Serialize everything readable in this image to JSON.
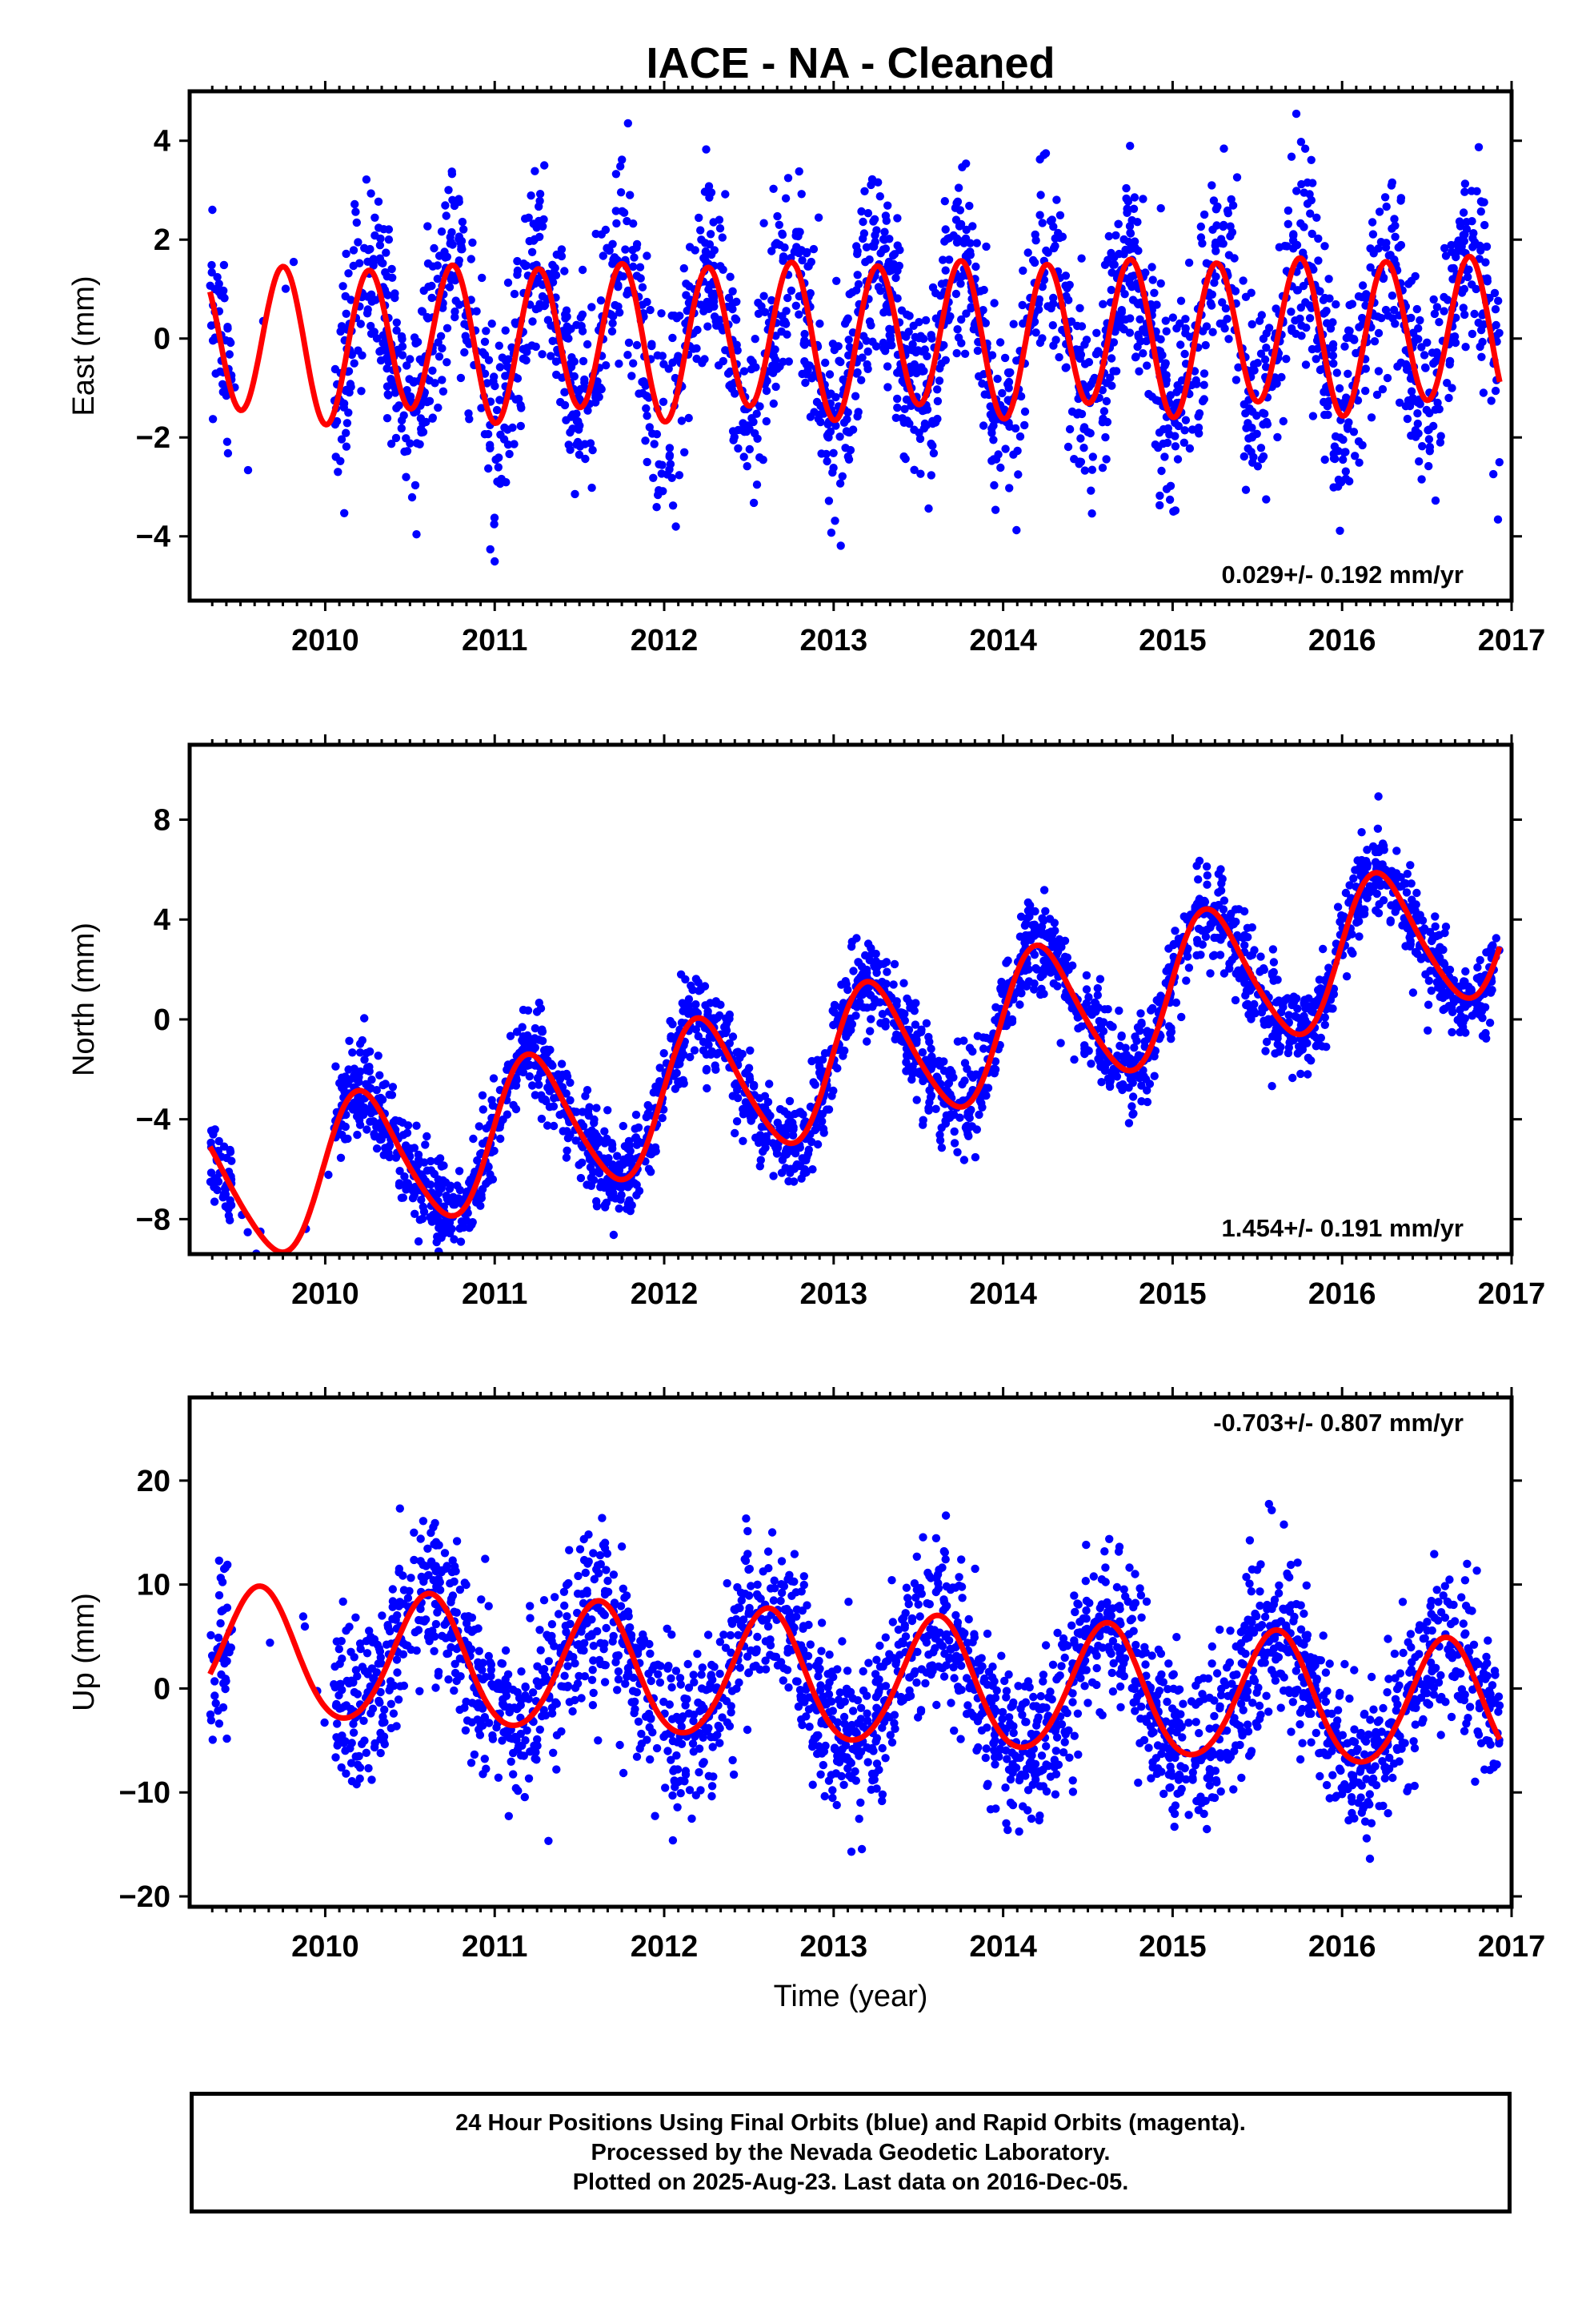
{
  "title": "IACE  - NA - Cleaned",
  "xlabel": "Time (year)",
  "footer": {
    "line1": "24 Hour Positions Using Final Orbits (blue) and Rapid Orbits (magenta).",
    "line2": "Processed by the Nevada Geodetic Laboratory.",
    "line3": "Plotted on 2025-Aug-23. Last data on 2016-Dec-05."
  },
  "colors": {
    "points": "#0000ff",
    "model": "#ff0000",
    "frame": "#000000"
  },
  "chart_data": [
    {
      "type": "scatter",
      "ylabel": "East (mm)",
      "rate_label": "0.029+/- 0.192 mm/yr",
      "rate_position": "bottom-right",
      "xlim": [
        2009.2,
        2017.0
      ],
      "ylim": [
        -5.3,
        5.0
      ],
      "xticks": [
        2010,
        2011,
        2012,
        2013,
        2014,
        2015,
        2016,
        2017
      ],
      "yticks": [
        -4,
        -2,
        0,
        2,
        4
      ],
      "data_range": [
        2009.32,
        2016.93
      ],
      "series": [
        {
          "kind": "points",
          "model": {
            "offset": 0.0,
            "rate": 0.029,
            "a1": -0.05,
            "b1": -0.15,
            "a2": -0.1,
            "b2": -1.5
          },
          "scatter": 1.0,
          "samples": 2700,
          "seed": 11
        },
        {
          "kind": "model-line",
          "model": {
            "offset": 0.0,
            "rate": 0.029,
            "a1": -0.05,
            "b1": -0.15,
            "a2": -0.1,
            "b2": -1.5
          }
        }
      ]
    },
    {
      "type": "scatter",
      "ylabel": "North (mm)",
      "rate_label": "1.454+/- 0.191 mm/yr",
      "rate_position": "bottom-right",
      "xlim": [
        2009.2,
        2017.0
      ],
      "ylim": [
        -9.4,
        11.0
      ],
      "xticks": [
        2010,
        2011,
        2012,
        2013,
        2014,
        2015,
        2016,
        2017
      ],
      "yticks": [
        -8,
        -4,
        0,
        4,
        8
      ],
      "data_range": [
        2009.32,
        2016.93
      ],
      "series": [
        {
          "kind": "points",
          "model": {
            "offset": -1.8,
            "rate": 1.454,
            "a1": 2.8,
            "b1": 0.5,
            "a2": 0.35,
            "b2": 0.0
          },
          "scatter": 0.9,
          "samples": 2700,
          "seed": 23
        },
        {
          "kind": "model-line",
          "model": {
            "offset": -1.8,
            "rate": 1.454,
            "a1": 2.8,
            "b1": 0.5,
            "a2": 0.35,
            "b2": 0.0
          }
        }
      ]
    },
    {
      "type": "scatter",
      "ylabel": "Up (mm)",
      "rate_label": "-0.703+/- 0.807 mm/yr",
      "rate_position": "top-right",
      "xlim": [
        2009.2,
        2017.0
      ],
      "ylim": [
        -21.0,
        28.0
      ],
      "xticks": [
        2010,
        2011,
        2012,
        2013,
        2014,
        2015,
        2016,
        2017
      ],
      "yticks": [
        -20,
        -10,
        0,
        10,
        20
      ],
      "data_range": [
        2009.32,
        2016.93
      ],
      "series": [
        {
          "kind": "points",
          "model": {
            "offset": 0.8,
            "rate": -0.703,
            "a1": -4.0,
            "b1": -4.7,
            "a2": 0.5,
            "b2": 0.0
          },
          "scatter": 4.0,
          "samples": 2700,
          "seed": 37
        },
        {
          "kind": "model-line",
          "model": {
            "offset": 0.8,
            "rate": -0.703,
            "a1": -4.0,
            "b1": -4.7,
            "a2": 0.5,
            "b2": 0.0
          }
        }
      ]
    }
  ]
}
